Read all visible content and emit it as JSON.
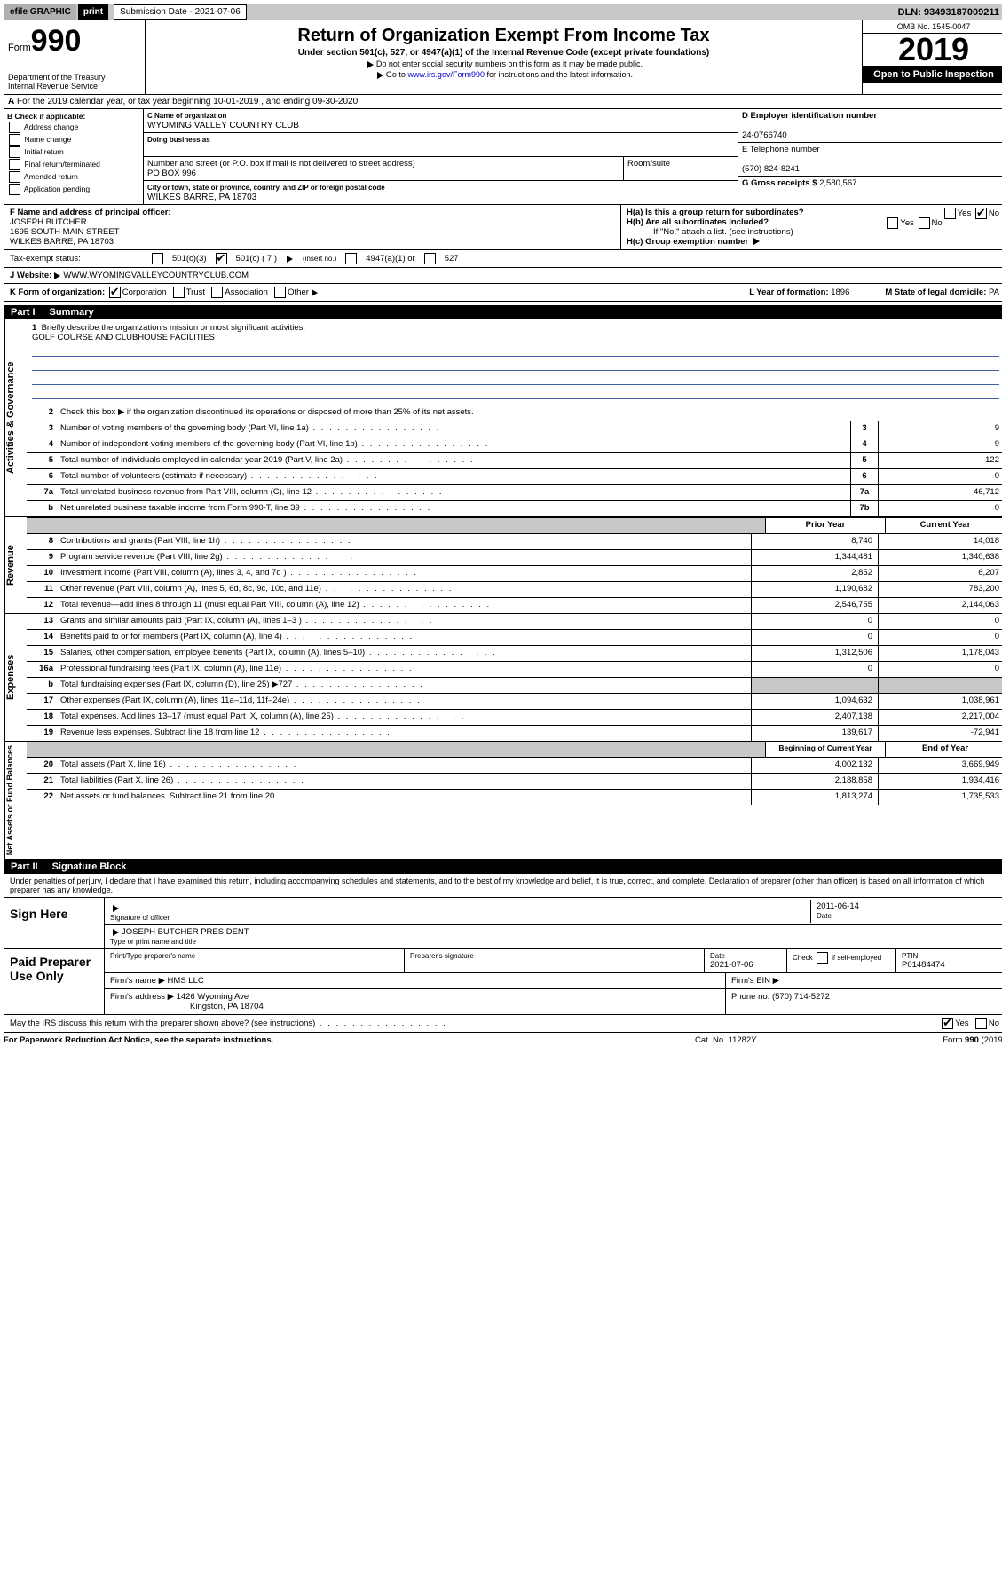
{
  "topbar": {
    "efile": "efile GRAPHIC",
    "print": "print",
    "subdate_label": "Submission Date - 2021-07-06",
    "dln": "DLN: 93493187009211"
  },
  "header": {
    "form_label": "Form",
    "form_num": "990",
    "dept": "Department of the Treasury\nInternal Revenue Service",
    "title": "Return of Organization Exempt From Income Tax",
    "subtitle": "Under section 501(c), 527, or 4947(a)(1) of the Internal Revenue Code (except private foundations)",
    "note1": "Do not enter social security numbers on this form as it may be made public.",
    "note2_pre": "Go to ",
    "note2_link": "www.irs.gov/Form990",
    "note2_post": " for instructions and the latest information.",
    "omb": "OMB No. 1545-0047",
    "year": "2019",
    "open": "Open to Public Inspection"
  },
  "row_a": "For the 2019 calendar year, or tax year beginning 10-01-2019   , and ending 09-30-2020",
  "col_b": {
    "label": "B Check if applicable:",
    "opts": [
      "Address change",
      "Name change",
      "Initial return",
      "Final return/terminated",
      "Amended return",
      "Application pending"
    ]
  },
  "col_c": {
    "name_lbl": "C Name of organization",
    "name": "WYOMING VALLEY COUNTRY CLUB",
    "dba_lbl": "Doing business as",
    "addr_lbl": "Number and street (or P.O. box if mail is not delivered to street address)",
    "room_lbl": "Room/suite",
    "addr": "PO BOX 996",
    "city_lbl": "City or town, state or province, country, and ZIP or foreign postal code",
    "city": "WILKES BARRE, PA  18703"
  },
  "col_de": {
    "d_lbl": "D Employer identification number",
    "d_val": "24-0766740",
    "e_lbl": "E Telephone number",
    "e_val": "(570) 824-8241",
    "g_lbl": "G Gross receipts $ ",
    "g_val": "2,580,567"
  },
  "col_f": {
    "lbl": "F  Name and address of principal officer:",
    "name": "JOSEPH BUTCHER",
    "addr1": "1695 SOUTH MAIN STREET",
    "addr2": "WILKES BARRE, PA  18703"
  },
  "col_h": {
    "ha": "H(a)  Is this a group return for subordinates?",
    "hb": "H(b)  Are all subordinates included?",
    "hb_note": "If \"No,\" attach a list. (see instructions)",
    "hc": "H(c)  Group exemption number",
    "yes": "Yes",
    "no": "No"
  },
  "tax": {
    "lbl": "Tax-exempt status:",
    "c3": "501(c)(3)",
    "c": "501(c) ( 7 )",
    "ins": "(insert no.)",
    "a1": "4947(a)(1) or",
    "527": "527"
  },
  "row_j": {
    "lbl": "J   Website:",
    "val": "WWW.WYOMINGVALLEYCOUNTRYCLUB.COM"
  },
  "row_k": {
    "lbl": "K Form of organization:",
    "corp": "Corporation",
    "trust": "Trust",
    "assoc": "Association",
    "other": "Other",
    "l_lbl": "L Year of formation: ",
    "l_val": "1896",
    "m_lbl": "M State of legal domicile: ",
    "m_val": "PA"
  },
  "part1": {
    "pt": "Part I",
    "title": "Summary"
  },
  "mission": {
    "lbl": "Briefly describe the organization's mission or most significant activities:",
    "val": "GOLF COURSE AND CLUBHOUSE FACILITIES"
  },
  "line2": "Check this box ▶     if the organization discontinued its operations or disposed of more than 25% of its net assets.",
  "lines_gov": [
    {
      "n": "3",
      "d": "Number of voting members of the governing body (Part VI, line 1a)",
      "b": "3",
      "v": "9"
    },
    {
      "n": "4",
      "d": "Number of independent voting members of the governing body (Part VI, line 1b)",
      "b": "4",
      "v": "9"
    },
    {
      "n": "5",
      "d": "Total number of individuals employed in calendar year 2019 (Part V, line 2a)",
      "b": "5",
      "v": "122"
    },
    {
      "n": "6",
      "d": "Total number of volunteers (estimate if necessary)",
      "b": "6",
      "v": "0"
    },
    {
      "n": "7a",
      "d": "Total unrelated business revenue from Part VIII, column (C), line 12",
      "b": "7a",
      "v": "46,712"
    },
    {
      "n": "b",
      "d": "Net unrelated business taxable income from Form 990-T, line 39",
      "b": "7b",
      "v": "0"
    }
  ],
  "headers_rev": {
    "py": "Prior Year",
    "cy": "Current Year"
  },
  "lines_rev": [
    {
      "n": "8",
      "d": "Contributions and grants (Part VIII, line 1h)",
      "py": "8,740",
      "cy": "14,018"
    },
    {
      "n": "9",
      "d": "Program service revenue (Part VIII, line 2g)",
      "py": "1,344,481",
      "cy": "1,340,638"
    },
    {
      "n": "10",
      "d": "Investment income (Part VIII, column (A), lines 3, 4, and 7d )",
      "py": "2,852",
      "cy": "6,207"
    },
    {
      "n": "11",
      "d": "Other revenue (Part VIII, column (A), lines 5, 6d, 8c, 9c, 10c, and 11e)",
      "py": "1,190,682",
      "cy": "783,200"
    },
    {
      "n": "12",
      "d": "Total revenue—add lines 8 through 11 (must equal Part VIII, column (A), line 12)",
      "py": "2,546,755",
      "cy": "2,144,063"
    }
  ],
  "lines_exp": [
    {
      "n": "13",
      "d": "Grants and similar amounts paid (Part IX, column (A), lines 1–3 )",
      "py": "0",
      "cy": "0"
    },
    {
      "n": "14",
      "d": "Benefits paid to or for members (Part IX, column (A), line 4)",
      "py": "0",
      "cy": "0"
    },
    {
      "n": "15",
      "d": "Salaries, other compensation, employee benefits (Part IX, column (A), lines 5–10)",
      "py": "1,312,506",
      "cy": "1,178,043"
    },
    {
      "n": "16a",
      "d": "Professional fundraising fees (Part IX, column (A), line 11e)",
      "py": "0",
      "cy": "0"
    },
    {
      "n": "b",
      "d": "Total fundraising expenses (Part IX, column (D), line 25) ▶727",
      "py": "",
      "cy": "",
      "shade": true
    },
    {
      "n": "17",
      "d": "Other expenses (Part IX, column (A), lines 11a–11d, 11f–24e)",
      "py": "1,094,632",
      "cy": "1,038,961"
    },
    {
      "n": "18",
      "d": "Total expenses. Add lines 13–17 (must equal Part IX, column (A), line 25)",
      "py": "2,407,138",
      "cy": "2,217,004"
    },
    {
      "n": "19",
      "d": "Revenue less expenses. Subtract line 18 from line 12",
      "py": "139,617",
      "cy": "-72,941"
    }
  ],
  "headers_net": {
    "boy": "Beginning of Current Year",
    "eoy": "End of Year"
  },
  "lines_net": [
    {
      "n": "20",
      "d": "Total assets (Part X, line 16)",
      "py": "4,002,132",
      "cy": "3,669,949"
    },
    {
      "n": "21",
      "d": "Total liabilities (Part X, line 26)",
      "py": "2,188,858",
      "cy": "1,934,416"
    },
    {
      "n": "22",
      "d": "Net assets or fund balances. Subtract line 21 from line 20",
      "py": "1,813,274",
      "cy": "1,735,533"
    }
  ],
  "part2": {
    "pt": "Part II",
    "title": "Signature Block"
  },
  "perjury": "Under penalties of perjury, I declare that I have examined this return, including accompanying schedules and statements, and to the best of my knowledge and belief, it is true, correct, and complete. Declaration of preparer (other than officer) is based on all information of which preparer has any knowledge.",
  "sign": {
    "here": "Sign Here",
    "sig_lbl": "Signature of officer",
    "date_lbl": "Date",
    "date": "2011-06-14",
    "name": "JOSEPH BUTCHER  PRESIDENT",
    "name_lbl": "Type or print name and title"
  },
  "paid": {
    "here": "Paid Preparer Use Only",
    "prep_lbl": "Print/Type preparer's name",
    "sig_lbl": "Preparer's signature",
    "date_lbl": "Date",
    "date": "2021-07-06",
    "check_lbl": "Check       if self-employed",
    "ptin_lbl": "PTIN",
    "ptin": "P01484474",
    "firm_name_lbl": "Firm's name  ▶",
    "firm_name": "HMS LLC",
    "ein_lbl": "Firm's EIN ▶",
    "addr_lbl": "Firm's address ▶",
    "addr1": "1426 Wyoming Ave",
    "addr2": "Kingston, PA  18704",
    "phone_lbl": "Phone no. ",
    "phone": "(570) 714-5272"
  },
  "discuss": {
    "q": "May the IRS discuss this return with the preparer shown above? (see instructions)",
    "yes": "Yes",
    "no": "No"
  },
  "footer": {
    "l": "For Paperwork Reduction Act Notice, see the separate instructions.",
    "m": "Cat. No. 11282Y",
    "r": "Form 990 (2019)"
  },
  "vlabels": {
    "gov": "Activities & Governance",
    "rev": "Revenue",
    "exp": "Expenses",
    "net": "Net Assets or Fund Balances"
  }
}
